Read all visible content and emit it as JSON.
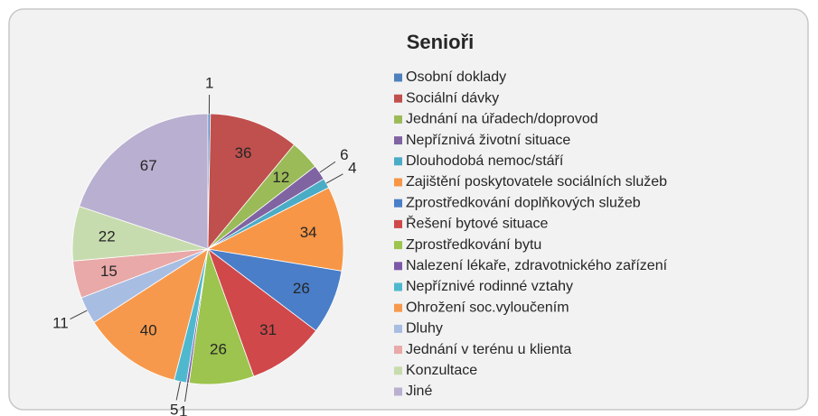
{
  "chart_data": {
    "type": "pie",
    "title": "Senioři",
    "categories": [
      "Osobní doklady",
      "Sociální dávky",
      "Jednání na úřadech/doprovod",
      "Nepříznivá životní situace",
      "Dlouhodobá nemoc/stáří",
      "Zajištění poskytovatele sociálních  služeb",
      "Zprostředkování doplňkových služeb",
      "Řešení bytové situace",
      "Zprostředkování bytu",
      "Nalezení  lékaře, zdravotnického zařízení",
      "Nepříznivé rodinné vztahy",
      "Ohrožení soc.vyloučením",
      "Dluhy",
      "Jednání v terénu u klienta",
      "Konzultace",
      "Jiné"
    ],
    "values": [
      1,
      36,
      12,
      6,
      4,
      34,
      26,
      31,
      26,
      1,
      5,
      40,
      11,
      15,
      22,
      67
    ],
    "colors": [
      "#4f81bd",
      "#c0504d",
      "#9bbb59",
      "#8064a2",
      "#4bacc6",
      "#f79646",
      "#4a7ec8",
      "#d0484a",
      "#9cc44e",
      "#7d58a8",
      "#4fb8cf",
      "#f7994c",
      "#a8bde2",
      "#e8a9a8",
      "#c7dcae",
      "#b9afd0"
    ],
    "legend": "right"
  }
}
